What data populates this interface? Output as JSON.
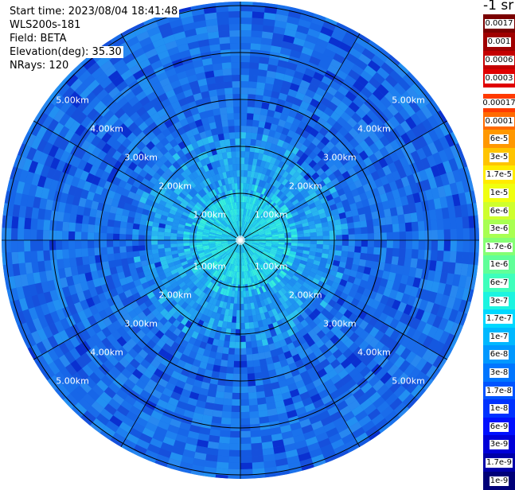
{
  "info": {
    "start_time": "Start time: 2023/08/04 18:41:48",
    "instrument": "WLS200s-181",
    "field": "Field: BETA",
    "elevation": "Elevation(deg): 35.30",
    "nrays": "NRays: 120"
  },
  "units": "-1 sr",
  "range_labels": [
    "1.00km",
    "2.00km",
    "3.00km",
    "4.00km",
    "5.00km"
  ],
  "colorbar": {
    "upper_labels": [
      "0.0017",
      "0.001",
      "0.0006",
      "0.0003"
    ],
    "upper_colors": [
      "#7a0000",
      "#a00000",
      "#c40000",
      "#e00000"
    ],
    "lower_labels": [
      "0.00017",
      "0.0001",
      "6e-5",
      "3e-5",
      "1.7e-5",
      "1e-5",
      "6e-6",
      "3e-6",
      "1.7e-6",
      "1e-6",
      "6e-7",
      "3e-7",
      "1.7e-7",
      "1e-7",
      "6e-8",
      "3e-8",
      "1.7e-8",
      "1e-8",
      "6e-9",
      "3e-9",
      "1.7e-9",
      "1e-9"
    ],
    "lower_colors": [
      "#ff3a00",
      "#ff6a00",
      "#ff9800",
      "#ffc400",
      "#ffec00",
      "#f0ff10",
      "#ceff2e",
      "#a8ff52",
      "#84ff74",
      "#60ff98",
      "#3effbc",
      "#1cf4e0",
      "#00d8ff",
      "#00b8ff",
      "#0098ff",
      "#0076ff",
      "#0054ff",
      "#0032ff",
      "#0010ff",
      "#0000d8",
      "#0000a8",
      "#000078"
    ]
  },
  "colors": {
    "outer_field": "#1766e8",
    "mid_field": "#1e8ef0",
    "core_field": "#26d8ea",
    "ring_stroke": "#000000"
  }
}
